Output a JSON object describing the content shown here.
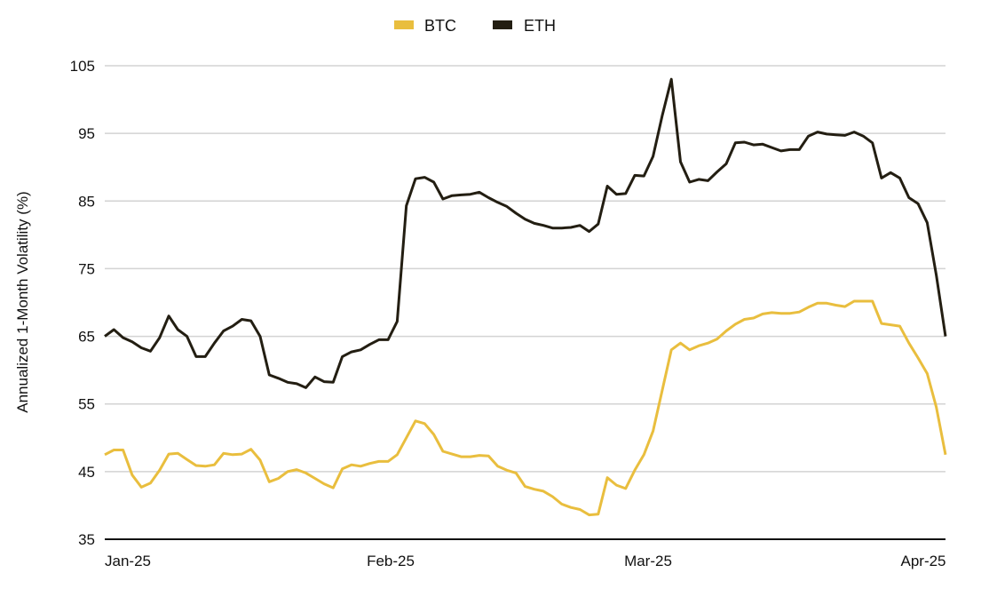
{
  "chart_data": {
    "type": "line",
    "title": "",
    "xlabel": "",
    "ylabel": "Annualized 1-Month Volatility (%)",
    "ylim": [
      35,
      105
    ],
    "yticks": [
      "35",
      "45",
      "55",
      "65",
      "75",
      "85",
      "95",
      "105"
    ],
    "xticks": [
      "Jan-25",
      "Feb-25",
      "Mar-25",
      "Apr-25"
    ],
    "grid": true,
    "legend_position": "top-center",
    "series": [
      {
        "name": "BTC",
        "color": "#E9BE3E",
        "values": [
          47.5,
          48.2,
          48.2,
          44.5,
          42.7,
          43.3,
          45.2,
          47.6,
          47.7,
          46.8,
          45.9,
          45.8,
          46,
          47.7,
          47.5,
          47.6,
          48.3,
          46.7,
          43.5,
          44,
          45,
          45.3,
          44.8,
          44,
          43.2,
          42.6,
          45.4,
          46,
          45.8,
          46.2,
          46.5,
          46.5,
          47.5,
          50,
          52.5,
          52.1,
          50.5,
          48,
          47.6,
          47.2,
          47.2,
          47.4,
          47.3,
          45.8,
          45.2,
          44.8,
          42.8,
          42.4,
          42.1,
          41.3,
          40.2,
          39.7,
          39.4,
          38.6,
          38.7,
          44.1,
          43,
          42.5,
          45.2,
          47.5,
          51,
          57,
          63,
          64,
          63,
          63.6,
          64,
          64.6,
          65.8,
          66.8,
          67.5,
          67.7,
          68.3,
          68.5,
          68.4,
          68.4,
          68.6,
          69.3,
          69.9,
          69.9,
          69.6,
          69.4,
          70.2,
          70.2,
          70.2,
          66.9,
          66.7,
          66.5,
          64,
          61.8,
          59.5,
          54.5,
          47.5
        ]
      },
      {
        "name": "ETH",
        "color": "#231E12",
        "values": [
          65,
          66,
          64.8,
          64.2,
          63.3,
          62.8,
          64.8,
          68,
          66,
          65,
          62,
          62,
          64,
          65.8,
          66.5,
          67.5,
          67.3,
          65,
          59.3,
          58.8,
          58.2,
          58,
          57.4,
          59,
          58.3,
          58.2,
          62,
          62.7,
          63,
          63.8,
          64.5,
          64.5,
          67.2,
          84.3,
          88.3,
          88.5,
          87.8,
          85.3,
          85.8,
          85.9,
          86,
          86.3,
          85.5,
          84.8,
          84.2,
          83.2,
          82.3,
          81.7,
          81.4,
          81,
          81,
          81.1,
          81.4,
          80.5,
          81.6,
          87.2,
          86,
          86.1,
          88.8,
          88.7,
          91.6,
          97.6,
          103,
          90.8,
          87.8,
          88.2,
          88,
          89.3,
          90.5,
          93.6,
          93.7,
          93.3,
          93.4,
          92.9,
          92.4,
          92.6,
          92.6,
          94.6,
          95.2,
          94.9,
          94.8,
          94.7,
          95.2,
          94.6,
          93.6,
          88.4,
          89.2,
          88.4,
          85.5,
          84.6,
          81.8,
          74,
          65
        ]
      }
    ]
  }
}
